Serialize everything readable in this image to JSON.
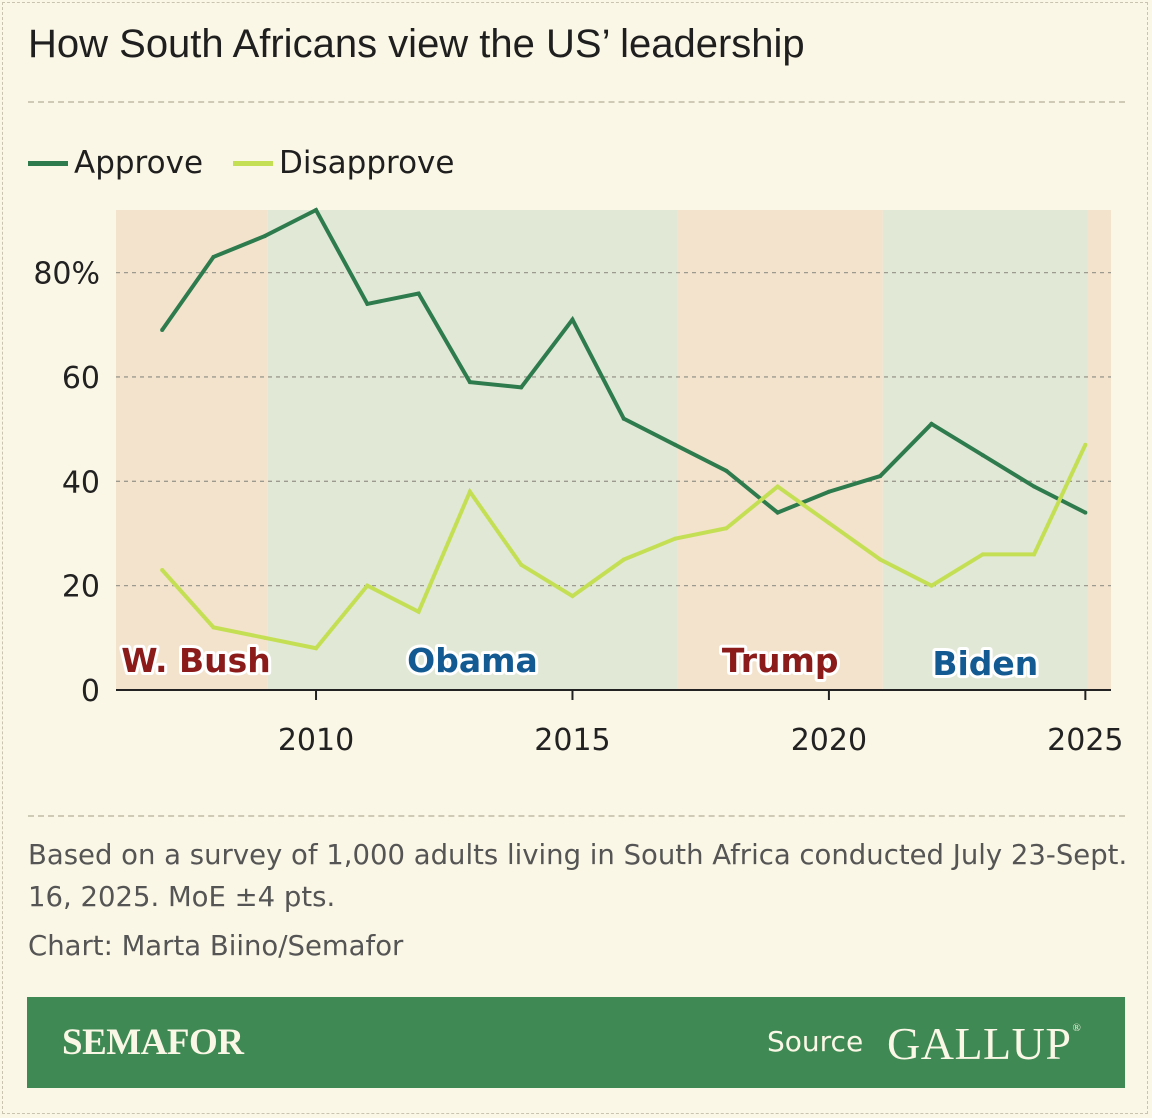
{
  "title": "How South Africans view the US’ leadership",
  "legend": {
    "approve_label": "Approve",
    "disapprove_label": "Disapprove"
  },
  "colors": {
    "background": "#fbf7e6",
    "approve": "#2e7b4e",
    "disapprove": "#c5df55",
    "republican_band": "#f3e3cc",
    "democrat_band": "#e2e8d6",
    "republican_text": "#8b1a1a",
    "democrat_text": "#135a93",
    "footer": "#3f8954"
  },
  "chart_data": {
    "type": "line",
    "x": [
      2007,
      2008,
      2009,
      2010,
      2011,
      2012,
      2013,
      2014,
      2015,
      2016,
      2017,
      2018,
      2019,
      2020,
      2021,
      2022,
      2023,
      2024,
      2025
    ],
    "series": [
      {
        "name": "Approve",
        "values": [
          69,
          83,
          87,
          92,
          74,
          76,
          59,
          58,
          71,
          52,
          47,
          42,
          34,
          38,
          41,
          51,
          45,
          39,
          34
        ]
      },
      {
        "name": "Disapprove",
        "values": [
          23,
          12,
          10,
          8,
          20,
          15,
          38,
          24,
          18,
          25,
          29,
          31,
          39,
          32,
          25,
          20,
          26,
          26,
          47
        ]
      }
    ],
    "xlim": [
      2006.1,
      2025.5
    ],
    "ylim": [
      0,
      92
    ],
    "yticks": [
      0,
      20,
      40,
      60,
      80
    ],
    "ytick_labels": [
      "0",
      "20",
      "40",
      "60",
      "80%"
    ],
    "xticks": [
      2010,
      2015,
      2020,
      2025
    ],
    "xtick_labels": [
      "2010",
      "2015",
      "2020",
      "2025"
    ],
    "grid": "horizontal dashed",
    "legend_position": "top-left",
    "presidencies": [
      {
        "label": "W. Bush",
        "start": 2006.1,
        "end": 2009.05,
        "party": "republican"
      },
      {
        "label": "Obama",
        "start": 2009.05,
        "end": 2017.05,
        "party": "democrat"
      },
      {
        "label": "Trump",
        "start": 2017.05,
        "end": 2021.05,
        "party": "republican"
      },
      {
        "label": "Biden",
        "start": 2021.05,
        "end": 2025.05,
        "party": "democrat"
      },
      {
        "label": "",
        "start": 2025.05,
        "end": 2025.5,
        "party": "republican"
      }
    ]
  },
  "note": "Based on a survey of 1,000 adults living in South Africa conducted July 23-Sept. 16, 2025. MoE ±4 pts.",
  "credit": "Chart: Marta Biino/Semafor",
  "footer": {
    "brand": "SEMAFOR",
    "source_label": "Source",
    "source_name": "GALLUP",
    "registered_mark": "®"
  }
}
